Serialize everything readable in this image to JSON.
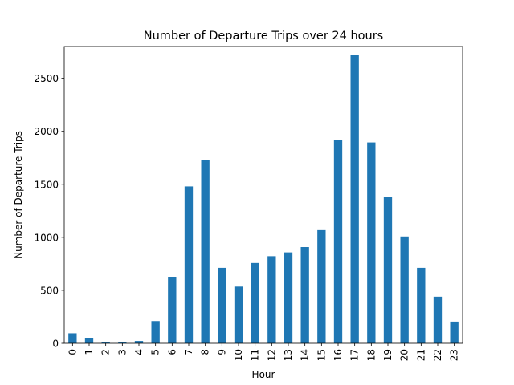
{
  "chart_data": {
    "type": "bar",
    "title": "Number of Departure Trips over 24 hours",
    "xlabel": "Hour",
    "ylabel": "Number of Departure Trips",
    "categories": [
      "0",
      "1",
      "2",
      "3",
      "4",
      "5",
      "6",
      "7",
      "8",
      "9",
      "10",
      "11",
      "12",
      "13",
      "14",
      "15",
      "16",
      "17",
      "18",
      "19",
      "20",
      "21",
      "22",
      "23"
    ],
    "values": [
      95,
      48,
      10,
      8,
      22,
      210,
      628,
      1480,
      1730,
      712,
      535,
      758,
      822,
      858,
      908,
      1068,
      1918,
      2720,
      1895,
      1378,
      1008,
      712,
      440,
      205
    ],
    "ylim": [
      0,
      2800
    ],
    "yticks": [
      0,
      500,
      1000,
      1500,
      2000,
      2500
    ],
    "bar_color": "#1f77b4",
    "grid": false,
    "legend": "none"
  }
}
